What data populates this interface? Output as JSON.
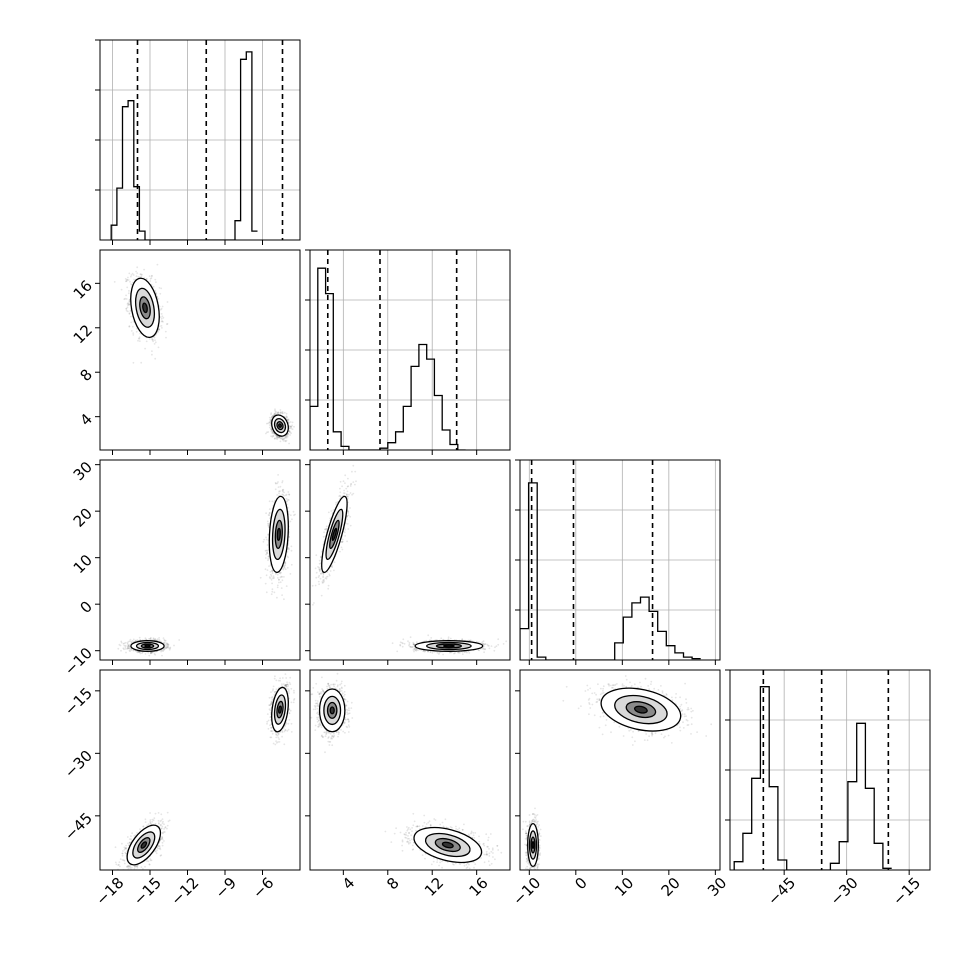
{
  "chart_data": {
    "type": "corner",
    "parameters": [
      {
        "range": [
          -19,
          -3
        ],
        "ticks": [
          -18,
          -15,
          -12,
          -9,
          -6
        ],
        "tick_labels": [
          "−18",
          "−15",
          "−12",
          "−9",
          "−6"
        ],
        "quantiles": [
          -16,
          -10.5,
          -4.4
        ],
        "hist": {
          "start": -18.1,
          "step": 0.45,
          "counts": [
            0.1,
            0.35,
            0.9,
            0.94,
            0.36,
            0.06,
            0,
            0,
            0,
            0,
            0,
            0,
            0,
            0,
            0,
            0,
            0,
            0,
            0,
            0,
            0,
            0,
            0.13,
            1.22,
            1.27,
            0.06
          ]
        },
        "hist_ylim": [
          0,
          1.35
        ]
      },
      {
        "range": [
          1,
          19
        ],
        "ticks": [
          4,
          8,
          12,
          16
        ],
        "tick_labels": [
          "4",
          "8",
          "12",
          "16"
        ],
        "quantiles": [
          2.6,
          7.3,
          14.2
        ],
        "hist": {
          "start": 1,
          "step": 0.7,
          "counts": [
            0.24,
            1.0,
            0.86,
            0.1,
            0.02,
            0,
            0,
            0,
            0,
            0.01,
            0.04,
            0.1,
            0.24,
            0.46,
            0.58,
            0.5,
            0.3,
            0.11,
            0.03,
            0
          ]
        },
        "hist_ylim": [
          0,
          1.1
        ]
      },
      {
        "range": [
          -12,
          31
        ],
        "ticks": [
          -10,
          0,
          10,
          20,
          30
        ],
        "tick_labels": [
          "−10",
          "0",
          "10",
          "20",
          "30"
        ],
        "quantiles": [
          -9.5,
          -0.5,
          16.5
        ],
        "hist": {
          "start": -12,
          "step": 1.85,
          "counts": [
            0.22,
            1.24,
            0.02,
            0,
            0,
            0,
            0,
            0,
            0,
            0,
            0,
            0.12,
            0.3,
            0.4,
            0.44,
            0.34,
            0.2,
            0.1,
            0.05,
            0.02,
            0.01
          ]
        },
        "hist_ylim": [
          0,
          1.4
        ]
      },
      {
        "range": [
          -58,
          -10
        ],
        "ticks": [
          -45,
          -30,
          -15
        ],
        "tick_labels": [
          "−45",
          "−30",
          "−15"
        ],
        "quantiles": [
          -50,
          -36,
          -20
        ],
        "hist": {
          "start": -57,
          "step": 2.1,
          "counts": [
            0.05,
            0.22,
            0.55,
            1.1,
            0.5,
            0.06,
            0,
            0,
            0,
            0,
            0,
            0.04,
            0.17,
            0.53,
            0.88,
            0.49,
            0.16,
            0.01
          ]
        },
        "hist_ylim": [
          0,
          1.2
        ]
      }
    ],
    "scatter": [
      {
        "x_param": 0,
        "y_param": 1,
        "modes": [
          {
            "cx": -15.4,
            "cy": 13.8,
            "sx": 0.6,
            "sy": 1.4,
            "rho": -0.3,
            "w": 0.5
          },
          {
            "cx": -4.6,
            "cy": 3.2,
            "sx": 0.35,
            "sy": 0.5,
            "rho": -0.2,
            "w": 0.5
          }
        ]
      },
      {
        "x_param": 0,
        "y_param": 2,
        "modes": [
          {
            "cx": -15.2,
            "cy": -9,
            "sx": 0.7,
            "sy": 0.6,
            "rho": 0.0,
            "w": 0.5
          },
          {
            "cx": -4.7,
            "cy": 15,
            "sx": 0.4,
            "sy": 4.3,
            "rho": 0.2,
            "w": 0.5
          }
        ]
      },
      {
        "x_param": 0,
        "y_param": 3,
        "modes": [
          {
            "cx": -15.5,
            "cy": -52,
            "sx": 0.7,
            "sy": 2.5,
            "rho": 0.6,
            "w": 0.5
          },
          {
            "cx": -4.6,
            "cy": -19.5,
            "sx": 0.35,
            "sy": 2.8,
            "rho": 0.3,
            "w": 0.5
          }
        ]
      },
      {
        "x_param": 1,
        "y_param": 2,
        "modes": [
          {
            "cx": 3.2,
            "cy": 15,
            "sx": 0.6,
            "sy": 4.3,
            "rho": 0.8,
            "w": 0.5
          },
          {
            "cx": 13.5,
            "cy": -9,
            "sx": 1.6,
            "sy": 0.6,
            "rho": 0.0,
            "w": 0.5
          }
        ]
      },
      {
        "x_param": 1,
        "y_param": 3,
        "modes": [
          {
            "cx": 3.0,
            "cy": -19.7,
            "sx": 0.6,
            "sy": 2.7,
            "rho": 0.0,
            "w": 0.5
          },
          {
            "cx": 13.4,
            "cy": -52,
            "sx": 1.6,
            "sy": 2.2,
            "rho": -0.4,
            "w": 0.5
          }
        ]
      },
      {
        "x_param": 2,
        "y_param": 3,
        "modes": [
          {
            "cx": -9.2,
            "cy": -52,
            "sx": 0.6,
            "sy": 2.7,
            "rho": 0.0,
            "w": 0.5
          },
          {
            "cx": 14,
            "cy": -19.5,
            "sx": 4.5,
            "sy": 2.7,
            "rho": -0.3,
            "w": 0.5
          }
        ]
      }
    ],
    "grid": true,
    "title": "",
    "legend": "none"
  }
}
